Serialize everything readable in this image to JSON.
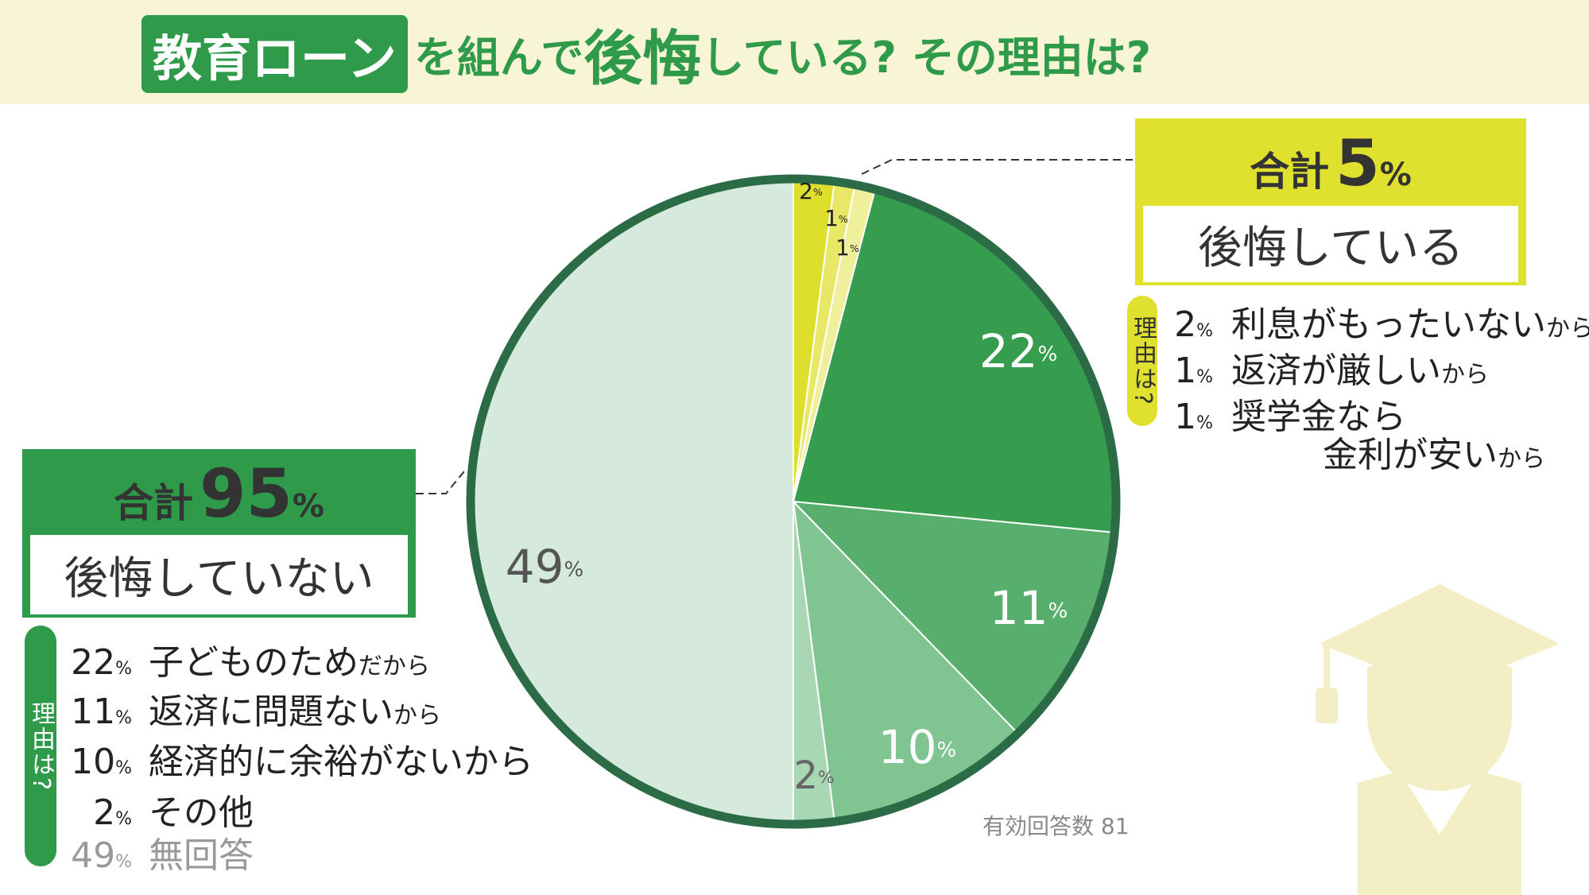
{
  "title": {
    "highlight": "教育ローン",
    "part1": "を組んで",
    "emphasis": "後悔",
    "part2": "している? その理由は?"
  },
  "chart_data": {
    "type": "pie",
    "percent_sign": "%",
    "values": [
      2,
      1,
      1,
      22,
      11,
      10,
      2,
      49
    ],
    "colors": [
      "#dede2c",
      "#e8e866",
      "#efef9c",
      "#359d4d",
      "#58ae6c",
      "#80c491",
      "#a9d6b3",
      "#d5eadc"
    ],
    "label_colors": [
      "#222222",
      "#222222",
      "#222222",
      "#ffffff",
      "#ffffff",
      "#ffffff",
      "#666666",
      "#555555"
    ],
    "ring_color": "#2b6b46",
    "note": "有効回答数 81"
  },
  "regret": {
    "total_label": "合計",
    "total": 5,
    "heading": "後悔している",
    "reasons_label": "理由は?",
    "reasons": [
      {
        "value": 2,
        "text": "利息がもったいない",
        "suffix": "から"
      },
      {
        "value": 1,
        "text": "返済が厳しい",
        "suffix": "から"
      },
      {
        "value": 1,
        "text": "奨学金なら",
        "text2": "金利が安い",
        "suffix": "から"
      }
    ]
  },
  "no_regret": {
    "total_label": "合計",
    "total": 95,
    "heading": "後悔していない",
    "reasons_label": "理由は?",
    "reasons": [
      {
        "value": 22,
        "text": "子どものため",
        "suffix": "だから"
      },
      {
        "value": 11,
        "text": "返済に問題ない",
        "suffix": "から"
      },
      {
        "value": 10,
        "text": "経済的に余裕がないから"
      },
      {
        "value": 2,
        "text": "その他"
      },
      {
        "value": 49,
        "text": "無回答"
      }
    ]
  }
}
